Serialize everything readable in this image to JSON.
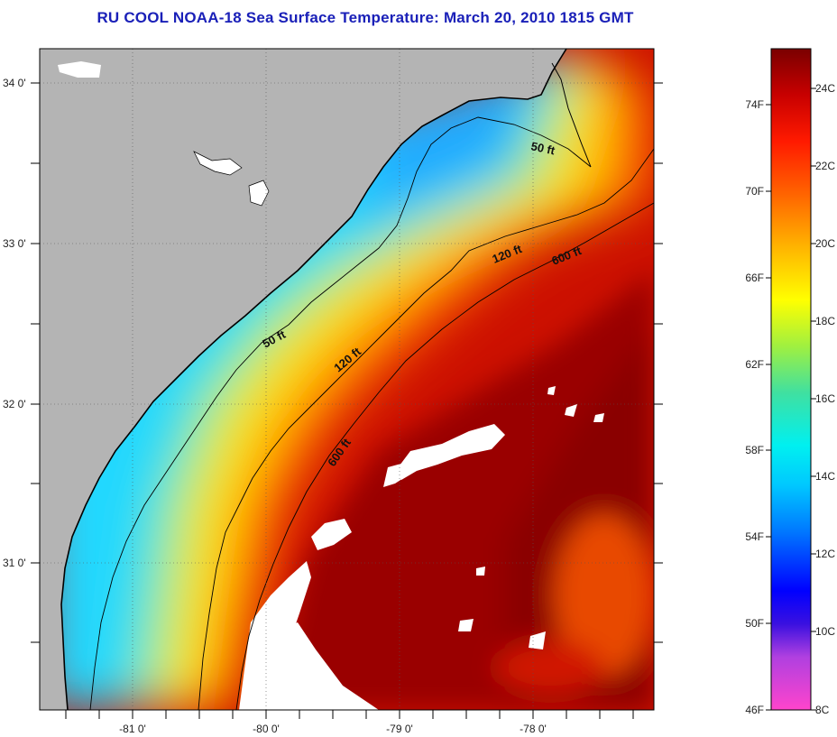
{
  "title": "RU COOL  NOAA-18  Sea Surface Temperature:  March 20, 2010 1815 GMT",
  "map": {
    "lon_labels": [
      "-81 0'",
      "-80 0'",
      "-79 0'",
      "-78 0'"
    ],
    "lat_labels": [
      "34 0'",
      "33 0'",
      "32 0'",
      "31 0'"
    ],
    "isobaths": {
      "shallow": "50 ft",
      "mid": "120 ft",
      "deep": "600 ft"
    },
    "colors": {
      "land": "#b4b4b4",
      "cloud": "#ffffff",
      "coast": "#000000"
    }
  },
  "colorbar": {
    "fahrenheit_labels": [
      "74F",
      "70F",
      "66F",
      "62F",
      "58F",
      "54F",
      "50F",
      "46F"
    ],
    "celsius_labels": [
      "24C",
      "22C",
      "20C",
      "18C",
      "16C",
      "14C",
      "12C",
      "10C",
      "8C"
    ]
  }
}
